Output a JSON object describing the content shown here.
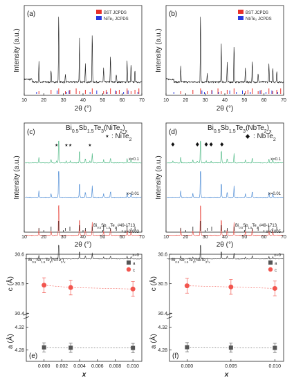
{
  "chart_data": [
    {
      "panel": "(a)",
      "type": "line",
      "ylabel": "Intensity (a.u.)",
      "xlabel": "2θ (°)",
      "xlim": [
        10,
        70
      ],
      "xticks": [
        10,
        20,
        30,
        40,
        50,
        60,
        70
      ],
      "legend": [
        {
          "name": "BST JCPDS",
          "color": "#e8302a"
        },
        {
          "name": "NiTe₂ JCPDS",
          "color": "#2a3be0"
        }
      ],
      "peaks": [
        [
          17.5,
          0.3
        ],
        [
          23.7,
          0.18
        ],
        [
          27.6,
          1.0
        ],
        [
          31.0,
          0.12
        ],
        [
          38.2,
          0.62
        ],
        [
          41.2,
          0.26
        ],
        [
          44.7,
          0.72
        ],
        [
          50.5,
          0.2
        ],
        [
          54.0,
          0.38
        ],
        [
          57.0,
          0.12
        ],
        [
          62.5,
          0.3
        ],
        [
          64.5,
          0.26
        ],
        [
          66.5,
          0.18
        ]
      ],
      "ref_red": [
        17.5,
        23.7,
        27.6,
        31.0,
        33.3,
        36.5,
        38.2,
        41.2,
        44.7,
        50.5,
        51.8,
        54.0,
        57.0,
        58.5,
        62.5,
        64.5,
        66.5,
        68.5
      ],
      "ref_blue": [
        16.3,
        26.8,
        31.6,
        32.9,
        43.6,
        47.0,
        52.3,
        56.6,
        60.7,
        63.0,
        68.0
      ]
    },
    {
      "panel": "(b)",
      "type": "line",
      "ylabel": "Intensity (a.u.)",
      "xlabel": "2θ (°)",
      "xlim": [
        10,
        70
      ],
      "xticks": [
        10,
        20,
        30,
        40,
        50,
        60,
        70
      ],
      "legend": [
        {
          "name": "BST JCPDS",
          "color": "#e8302a"
        },
        {
          "name": "NbTe₂ JCPDS",
          "color": "#2a3be0"
        }
      ],
      "peaks": [
        [
          17.5,
          0.22
        ],
        [
          27.6,
          1.0
        ],
        [
          31.0,
          0.12
        ],
        [
          38.2,
          0.55
        ],
        [
          41.2,
          0.28
        ],
        [
          44.7,
          0.55
        ],
        [
          50.5,
          0.2
        ],
        [
          54.0,
          0.3
        ],
        [
          57.0,
          0.12
        ],
        [
          62.5,
          0.26
        ],
        [
          64.5,
          0.22
        ],
        [
          66.5,
          0.16
        ]
      ],
      "ref_red": [
        17.5,
        23.7,
        27.6,
        31.0,
        33.3,
        36.5,
        38.2,
        41.2,
        44.7,
        50.5,
        51.8,
        54.0,
        57.0,
        58.5,
        62.5,
        64.5,
        66.5,
        68.5
      ],
      "ref_blue": [
        14.0,
        28.3,
        29.6,
        33.5,
        36.8,
        42.5,
        45.9,
        49.0,
        53.0,
        58.0,
        61.0,
        64.0,
        67.0
      ]
    },
    {
      "panel": "(c)",
      "type": "line",
      "title": "Bi0.5Sb1.5Te3(NiTe2)x",
      "marker_legend": ": NiTe2",
      "ylabel": "Intensity (a.u.)",
      "xlabel": "2θ (°)",
      "xlim": [
        10,
        70
      ],
      "xticks": [
        10,
        20,
        30,
        40,
        50,
        60,
        70
      ],
      "series": [
        {
          "name": "x=0.1",
          "color": "#3fb37a"
        },
        {
          "name": "x=0.01",
          "color": "#3a7fd0"
        },
        {
          "name": "x=0.003",
          "color": "#e8453c"
        },
        {
          "name": "x=0",
          "color": "#222222"
        }
      ],
      "reference_label": "Bi0.5Sb1.5Te3 #49-1713",
      "impurity_peaks": [
        26.5,
        31.5,
        33.5,
        43.5
      ]
    },
    {
      "panel": "(d)",
      "type": "line",
      "title": "Bi0.5Sb1.5Te3(NbTe2)x",
      "marker_legend": ": NbTe2",
      "ylabel": "Intensity (a.u.)",
      "xlabel": "2θ (°)",
      "xlim": [
        10,
        70
      ],
      "xticks": [
        10,
        20,
        30,
        40,
        50,
        60,
        70
      ],
      "series": [
        {
          "name": "x=0.1",
          "color": "#3fb37a"
        },
        {
          "name": "x=0.01",
          "color": "#3a7fd0"
        },
        {
          "name": "x=0.005",
          "color": "#e8453c"
        },
        {
          "name": "x=0",
          "color": "#222222"
        }
      ],
      "reference_label": "Bi0.5Sb1.5Te3 #49-1713",
      "impurity_peaks": [
        13.5,
        26.0,
        30.5,
        33.0,
        38.5
      ]
    },
    {
      "panel": "(e)",
      "type": "scatter",
      "title": "Bi0.5Sb1.5Te3(NiTe2)x",
      "xlabel": "x",
      "ylabel_top": "c (Å)",
      "ylabel_bottom": "a (Å)",
      "xlim": [
        -0.002,
        0.011
      ],
      "xticks": [
        "0.000",
        "0.002",
        "0.004",
        "0.006",
        "0.008",
        "0.010"
      ],
      "top_axis": {
        "ylim": [
          30.4,
          30.6
        ],
        "ticks": [
          "30.4",
          "30.5",
          "30.6"
        ]
      },
      "bottom_axis": {
        "ylim": [
          4.26,
          4.33
        ],
        "ticks": [
          "4.28",
          "4.32"
        ]
      },
      "legend": [
        {
          "name": "a",
          "color": "#555555"
        },
        {
          "name": "c",
          "color": "#f2554e"
        }
      ],
      "x": [
        0.0,
        0.003,
        0.01
      ],
      "c": [
        30.495,
        30.487,
        30.482
      ],
      "c_err": 0.025,
      "a": [
        4.2845,
        4.2838,
        4.2835
      ],
      "a_err": 0.008
    },
    {
      "panel": "(f)",
      "type": "scatter",
      "title": "Bi0.5Sb1.5Te3(NbTe2)x",
      "xlabel": "x",
      "ylabel_top": "c (Å)",
      "ylabel_bottom": "a (Å)",
      "xlim": [
        -0.002,
        0.011
      ],
      "xticks": [
        "0.000",
        "0.005",
        "0.010"
      ],
      "top_axis": {
        "ylim": [
          30.4,
          30.6
        ],
        "ticks": [
          "30.4",
          "30.5",
          "30.6"
        ]
      },
      "bottom_axis": {
        "ylim": [
          4.26,
          4.33
        ],
        "ticks": [
          "4.28",
          "4.32"
        ]
      },
      "legend": [
        {
          "name": "a",
          "color": "#555555"
        },
        {
          "name": "c",
          "color": "#f2554e"
        }
      ],
      "x": [
        0.0,
        0.005,
        0.01
      ],
      "c": [
        30.493,
        30.489,
        30.484
      ],
      "c_err": 0.025,
      "a": [
        4.2848,
        4.284,
        4.2836
      ],
      "a_err": 0.008
    }
  ]
}
